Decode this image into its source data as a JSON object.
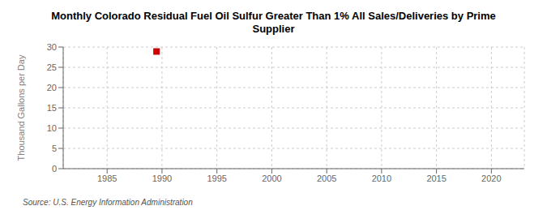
{
  "chart_data": {
    "type": "scatter",
    "title": "Monthly Colorado Residual Fuel Oil Sulfur Greater Than 1% All Sales/Deliveries by Prime\nSupplier",
    "ylabel": "Thousand Gallons per Day",
    "source": "Source: U.S. Energy Information Administration",
    "x": [
      1989.5
    ],
    "values": [
      28.9
    ],
    "color": "#cc0000",
    "marker": "square",
    "xlim": [
      1981,
      2023
    ],
    "xticks": [
      1985,
      1990,
      1995,
      2000,
      2005,
      2010,
      2015,
      2020
    ],
    "ylim": [
      0,
      30
    ],
    "yticks": [
      0,
      5,
      10,
      15,
      20,
      25,
      30
    ],
    "grid": true
  }
}
